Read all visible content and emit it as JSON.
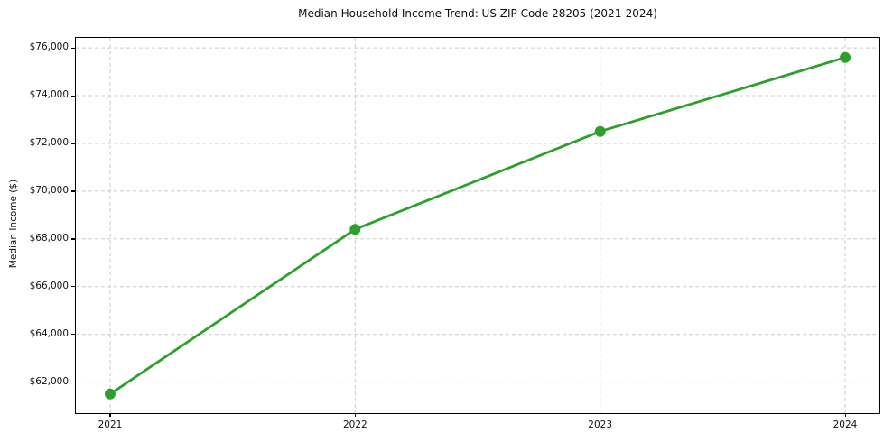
{
  "chart_data": {
    "type": "line",
    "title": "Median Household Income Trend: US ZIP Code 28205 (2021-2024)",
    "xlabel": "",
    "ylabel": "Median Income ($)",
    "x": [
      2021,
      2022,
      2023,
      2024
    ],
    "x_tick_labels": [
      "2021",
      "2022",
      "2023",
      "2024"
    ],
    "series": [
      {
        "name": "Median Household Income",
        "values": [
          61500,
          68400,
          72500,
          75600
        ]
      }
    ],
    "y_ticks": [
      62000,
      64000,
      66000,
      68000,
      70000,
      72000,
      74000,
      76000
    ],
    "y_tick_labels": [
      "$62,000",
      "$64,000",
      "$66,000",
      "$68,000",
      "$70,000",
      "$72,000",
      "$74,000",
      "$76,000"
    ],
    "xlim": [
      2020.86,
      2024.14
    ],
    "ylim": [
      60700,
      76420
    ],
    "grid": true,
    "grid_style": "dashed",
    "legend": "none",
    "line_color": "#2ca02c",
    "marker": "circle",
    "marker_color": "#2ca02c",
    "grid_color": "#cccccc",
    "spine_color": "#000000",
    "background_color": "#ffffff"
  }
}
